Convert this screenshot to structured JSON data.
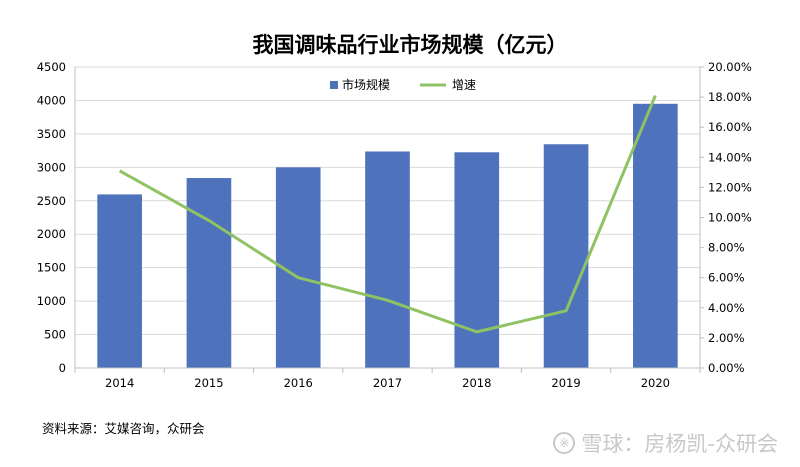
{
  "chart_data": {
    "type": "bar",
    "title": "我国调味品行业市场规模（亿元）",
    "categories": [
      "2014",
      "2015",
      "2016",
      "2017",
      "2018",
      "2019",
      "2020"
    ],
    "series": [
      {
        "name": "市场规模",
        "type": "bar",
        "axis": "left",
        "color": "#4f72bd",
        "values": [
          2595,
          2840,
          3000,
          3237,
          3225,
          3345,
          3950
        ]
      },
      {
        "name": "增速",
        "type": "line",
        "axis": "right",
        "color": "#8ec263",
        "values": [
          13.1,
          9.8,
          6.0,
          4.5,
          2.4,
          3.8,
          18.1
        ]
      }
    ],
    "ylim": [
      0,
      4500
    ],
    "yticks": [
      "0",
      "500",
      "1000",
      "1500",
      "2000",
      "2500",
      "3000",
      "3500",
      "4000",
      "4500"
    ],
    "y2lim": [
      0,
      20
    ],
    "y2ticks": [
      "0.00%",
      "2.00%",
      "4.00%",
      "6.00%",
      "8.00%",
      "10.00%",
      "12.00%",
      "14.00%",
      "16.00%",
      "18.00%",
      "20.00%"
    ],
    "grid": true,
    "legend_position": "top-center"
  },
  "footer": {
    "source": "资料来源：艾媒咨询，众研会",
    "watermark_logo": "※",
    "watermark": "雪球：房杨凯-众研会"
  }
}
